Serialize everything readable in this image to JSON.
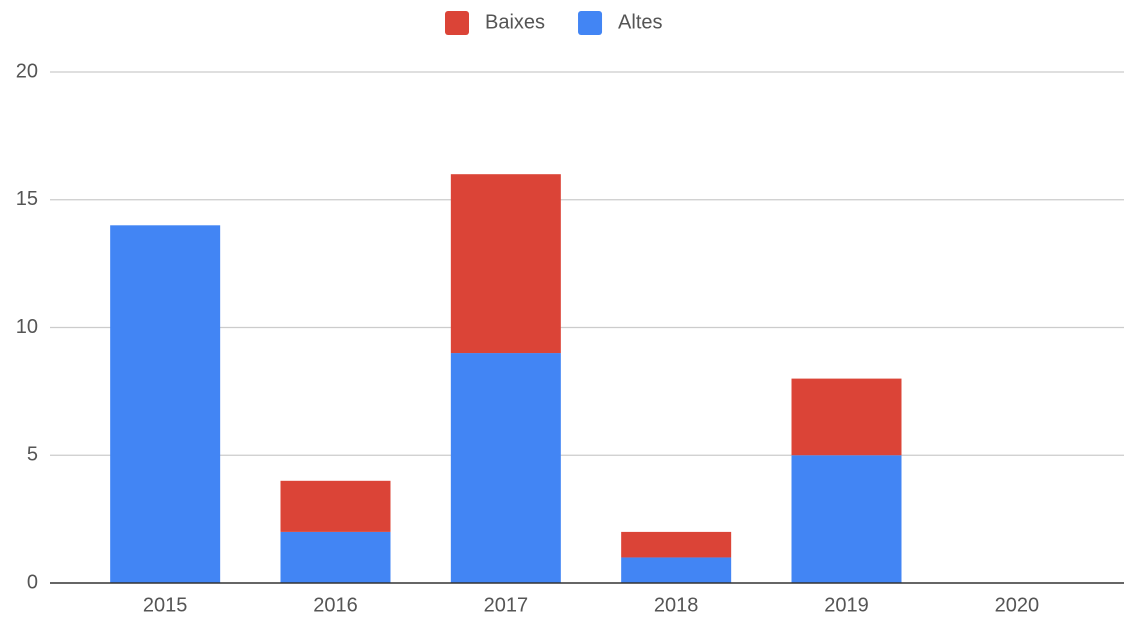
{
  "chart_data": {
    "type": "stacked_bar",
    "categories": [
      "2015",
      "2016",
      "2017",
      "2018",
      "2019",
      "2020"
    ],
    "series": [
      {
        "name": "Baixes",
        "color": "#db4437",
        "values": [
          0,
          2,
          7,
          1,
          3,
          0
        ]
      },
      {
        "name": "Altes",
        "color": "#4285f4",
        "values": [
          14,
          2,
          9,
          1,
          5,
          0
        ]
      }
    ],
    "ylim": [
      0,
      20
    ],
    "yticks": [
      0,
      5,
      10,
      15,
      20
    ],
    "grid": true,
    "legend": "top"
  }
}
